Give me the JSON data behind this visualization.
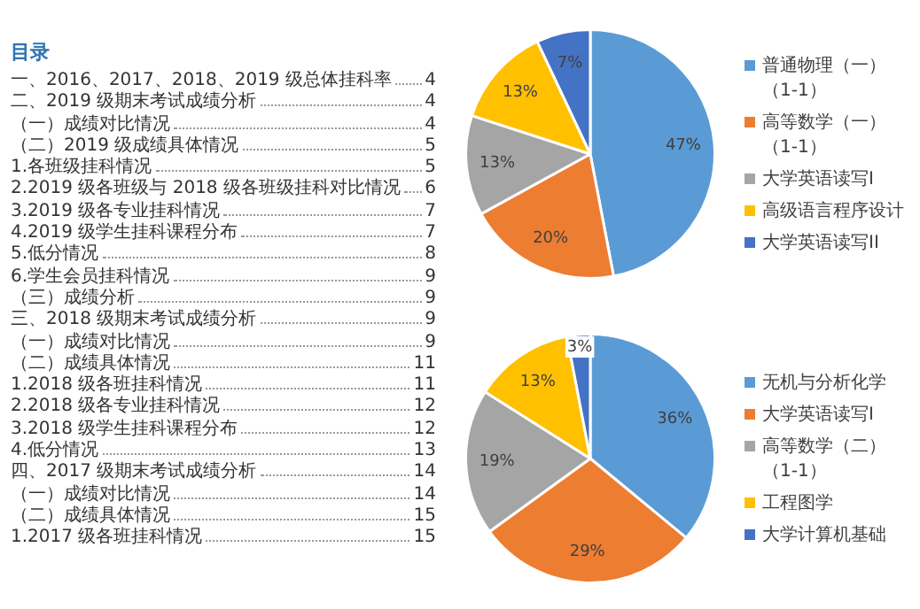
{
  "chart_data": [
    {
      "type": "other",
      "title": "目录",
      "annotations": [
        "一、2016、2017、2018、2019 级总体挂科率",
        "4",
        "二、2019 级期末考试成绩分析",
        "4",
        "（一）成绩对比情况",
        "4",
        "（二）2019 级成绩具体情况",
        "5",
        "1.各班级挂科情况",
        "5",
        "2.2019 级各班级与 2018 级各班级挂科对比情况",
        "6",
        "3.2019 级各专业挂科情况",
        "7",
        "4.2019 级学生挂科课程分布",
        "7",
        "5.低分情况",
        "8",
        "6.学生会员挂科情况",
        "9",
        "（三）成绩分析",
        "9",
        "三、2018 级期末考试成绩分析",
        "9",
        "（一）成绩对比情况",
        "9",
        "（二）成绩具体情况",
        "11",
        "1.2018 级各班挂科情况",
        "11",
        "2.2018 级各专业挂科情况",
        "12",
        "3.2018 级学生挂科课程分布",
        "12",
        "4.低分情况",
        "13",
        "四、2017 级期末考试成绩分析",
        "14",
        "（一）成绩对比情况",
        "14",
        "（二）成绩具体情况",
        "15",
        "1.2017 级各班挂科情况",
        "15"
      ]
    },
    {
      "type": "pie",
      "categories": [
        "普通物理（一）（1-1）",
        "高等数学（一）（1-1）",
        "大学英语读写I",
        "高级语言程序设计",
        "大学英语读写II"
      ],
      "values": [
        47,
        20,
        13,
        13,
        7
      ],
      "value_labels": [
        "47%",
        "20%",
        "13%",
        "13%",
        "7%"
      ],
      "colors": [
        "#5b9bd5",
        "#ed7d31",
        "#a5a5a5",
        "#ffc000",
        "#4472c4"
      ],
      "legend": "right"
    },
    {
      "type": "pie",
      "categories": [
        "无机与分析化学",
        "大学英语读写I",
        "高等数学（二）（1-1）",
        "工程图学",
        "大学计算机基础"
      ],
      "values": [
        36,
        29,
        19,
        13,
        3
      ],
      "value_labels": [
        "36%",
        "29%",
        "19%",
        "13%",
        "3%"
      ],
      "colors": [
        "#5b9bd5",
        "#ed7d31",
        "#a5a5a5",
        "#ffc000",
        "#4472c4"
      ],
      "legend": "right"
    }
  ]
}
